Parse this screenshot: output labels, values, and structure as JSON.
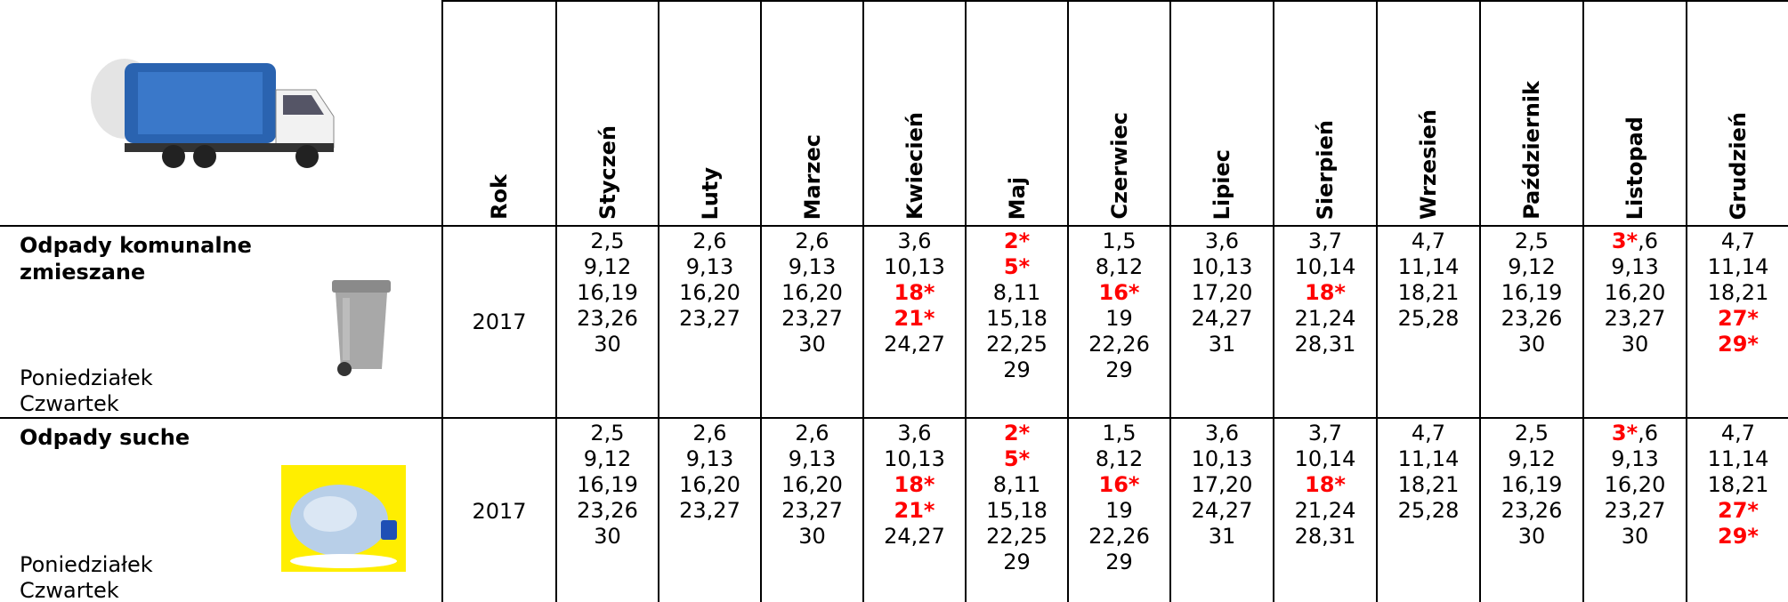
{
  "table": {
    "header": [
      "Rok",
      "Styczeń",
      "Luty",
      "Marzec",
      "Kwiecień",
      "Maj",
      "Czerwiec",
      "Lipiec",
      "Sierpień",
      "Wrzesień",
      "Październik",
      "Listopad",
      "Grudzień"
    ],
    "rows": [
      {
        "title": "Odpady komunalne zmieszane",
        "days": [
          "Poniedziałek",
          "Czwartek"
        ],
        "year": "2017",
        "cells": [
          [
            [
              "2,5"
            ],
            [
              "9,12"
            ],
            [
              "16,19"
            ],
            [
              "23,26"
            ],
            [
              "30"
            ]
          ],
          [
            [
              "2,6"
            ],
            [
              "9,13"
            ],
            [
              "16,20"
            ],
            [
              "23,27"
            ]
          ],
          [
            [
              "2,6"
            ],
            [
              "9,13"
            ],
            [
              "16,20"
            ],
            [
              "23,27"
            ],
            [
              "30"
            ]
          ],
          [
            [
              "3,6"
            ],
            [
              "10,13"
            ],
            [
              {
                "text": "18*",
                "color": "#ff0000"
              }
            ],
            [
              {
                "text": "21*",
                "color": "#ff0000"
              }
            ],
            [
              "24,27"
            ]
          ],
          [
            [
              {
                "text": "2*",
                "color": "#ff0000"
              }
            ],
            [
              {
                "text": "5*",
                "color": "#ff0000"
              }
            ],
            [
              "8,11"
            ],
            [
              "15,18"
            ],
            [
              "22,25"
            ],
            [
              "29"
            ]
          ],
          [
            [
              "1,5"
            ],
            [
              "8,12"
            ],
            [
              {
                "text": "16*",
                "color": "#ff0000"
              }
            ],
            [
              "19"
            ],
            [
              "22,26"
            ],
            [
              "29"
            ]
          ],
          [
            [
              "3,6"
            ],
            [
              "10,13"
            ],
            [
              "17,20"
            ],
            [
              "24,27"
            ],
            [
              "31"
            ]
          ],
          [
            [
              "3,7"
            ],
            [
              "10,14"
            ],
            [
              {
                "text": "18*",
                "color": "#ff0000"
              }
            ],
            [
              "21,24"
            ],
            [
              "28,31"
            ]
          ],
          [
            [
              "4,7"
            ],
            [
              "11,14"
            ],
            [
              "18,21"
            ],
            [
              "25,28"
            ]
          ],
          [
            [
              "2,5"
            ],
            [
              "9,12"
            ],
            [
              "16,19"
            ],
            [
              "23,26"
            ],
            [
              "30"
            ]
          ],
          [
            [
              {
                "text": "3*",
                "color": "#ff0000"
              },
              ",6"
            ],
            [
              "9,13"
            ],
            [
              "16,20"
            ],
            [
              "23,27"
            ],
            [
              "30"
            ]
          ],
          [
            [
              "4,7"
            ],
            [
              "11,14"
            ],
            [
              "18,21"
            ],
            [
              {
                "text": "27*",
                "color": "#ff0000"
              }
            ],
            [
              {
                "text": "29*",
                "color": "#ff0000"
              }
            ]
          ]
        ]
      },
      {
        "title": "Odpady suche",
        "days": [
          "Poniedziałek",
          "Czwartek"
        ],
        "year": "2017",
        "cells": [
          [
            [
              "2,5"
            ],
            [
              "9,12"
            ],
            [
              "16,19"
            ],
            [
              "23,26"
            ],
            [
              "30"
            ]
          ],
          [
            [
              "2,6"
            ],
            [
              "9,13"
            ],
            [
              "16,20"
            ],
            [
              "23,27"
            ]
          ],
          [
            [
              "2,6"
            ],
            [
              "9,13"
            ],
            [
              "16,20"
            ],
            [
              "23,27"
            ],
            [
              "30"
            ]
          ],
          [
            [
              "3,6"
            ],
            [
              "10,13"
            ],
            [
              {
                "text": "18*",
                "color": "#ff0000"
              }
            ],
            [
              {
                "text": "21*",
                "color": "#ff0000"
              }
            ],
            [
              "24,27"
            ]
          ],
          [
            [
              {
                "text": "2*",
                "color": "#ff0000"
              }
            ],
            [
              {
                "text": "5*",
                "color": "#ff0000"
              }
            ],
            [
              "8,11"
            ],
            [
              "15,18"
            ],
            [
              "22,25"
            ],
            [
              "29"
            ]
          ],
          [
            [
              "1,5"
            ],
            [
              "8,12"
            ],
            [
              {
                "text": "16*",
                "color": "#ff0000"
              }
            ],
            [
              "19"
            ],
            [
              "22,26"
            ],
            [
              "29"
            ]
          ],
          [
            [
              "3,6"
            ],
            [
              "10,13"
            ],
            [
              "17,20"
            ],
            [
              "24,27"
            ],
            [
              "31"
            ]
          ],
          [
            [
              "3,7"
            ],
            [
              "10,14"
            ],
            [
              {
                "text": "18*",
                "color": "#ff0000"
              }
            ],
            [
              "21,24"
            ],
            [
              "28,31"
            ]
          ],
          [
            [
              "4,7"
            ],
            [
              "11,14"
            ],
            [
              "18,21"
            ],
            [
              "25,28"
            ]
          ],
          [
            [
              "2,5"
            ],
            [
              "9,12"
            ],
            [
              "16,19"
            ],
            [
              "23,26"
            ],
            [
              "30"
            ]
          ],
          [
            [
              {
                "text": "3*",
                "color": "#ff0000"
              },
              ",6"
            ],
            [
              "9,13"
            ],
            [
              "16,20"
            ],
            [
              "23,27"
            ],
            [
              "30"
            ]
          ],
          [
            [
              "4,7"
            ],
            [
              "11,14"
            ],
            [
              "18,21"
            ],
            [
              {
                "text": "27*",
                "color": "#ff0000"
              }
            ],
            [
              {
                "text": "29*",
                "color": "#ff0000"
              }
            ]
          ]
        ]
      }
    ]
  }
}
